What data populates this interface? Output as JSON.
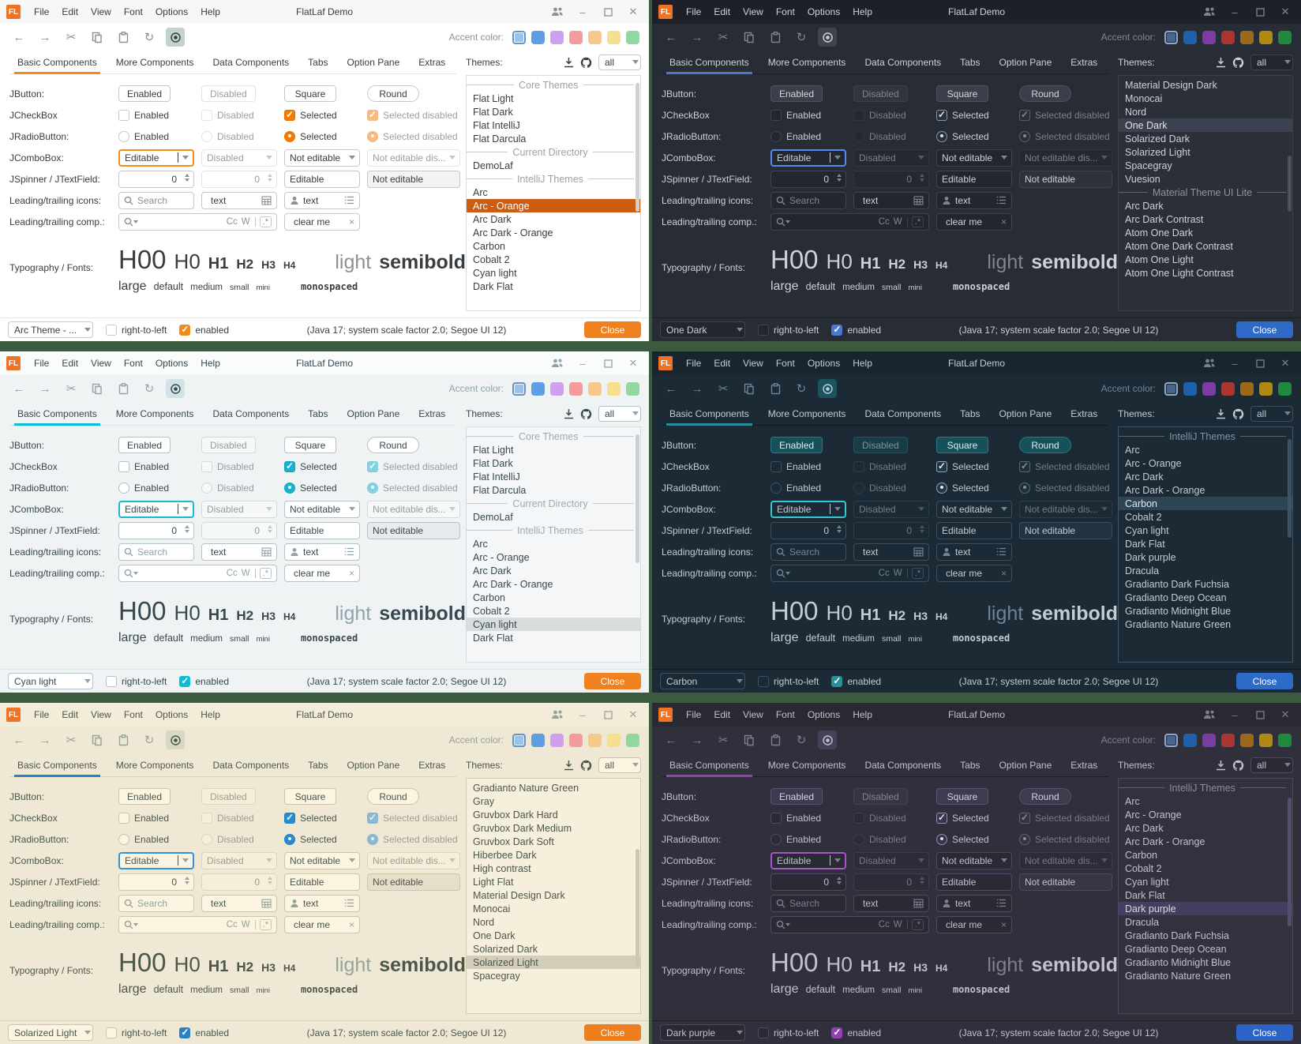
{
  "shared": {
    "titlebar": {
      "logo": "FL",
      "menus": [
        "File",
        "Edit",
        "View",
        "Font",
        "Options",
        "Help"
      ],
      "title": "FlatLaf Demo",
      "minimize": "–",
      "close": "✕"
    },
    "toolbar": {
      "accent_label": "Accent color:",
      "swatches": {
        "light": [
          "#9cc2e8",
          "#5c9fe6",
          "#cf9ff0",
          "#f59b9b",
          "#f6c98b",
          "#f6df8d",
          "#90d7a1"
        ],
        "dark": [
          "#4c648c",
          "#1d61ad",
          "#7c3da3",
          "#ad3531",
          "#9c691b",
          "#ae8a12",
          "#20893d"
        ]
      }
    },
    "tabs": [
      "Basic Components",
      "More Components",
      "Data Components",
      "Tabs",
      "Option Pane",
      "Extras"
    ],
    "themesPanel": {
      "label": "Themes:",
      "filter": "all"
    },
    "rows": {
      "labels": [
        "JButton:",
        "JCheckBox",
        "JRadioButton:",
        "JComboBox:",
        "JSpinner / JTextField:",
        "Leading/trailing icons:",
        "Leading/trailing comp.:",
        "Typography / Fonts:"
      ],
      "help": "?",
      "buttons": [
        "Enabled",
        "Disabled",
        "Square",
        "Round"
      ],
      "check": [
        "Enabled",
        "Disabled",
        "Selected",
        "Selected disabled"
      ],
      "radio": [
        "Enabled",
        "Disabled",
        "Selected",
        "Selected disabled"
      ],
      "combo": [
        "Editable",
        "Disabled",
        "Not editable",
        "Not editable dis..."
      ],
      "spinner": {
        "value1": "0",
        "value2": "0",
        "field1": "Editable",
        "field2": "Not editable"
      },
      "icons": {
        "search_placeholder": "Search",
        "text1": "text",
        "text2": "text"
      },
      "comp": {
        "cc": "Cc",
        "w": "W",
        "regex": ".*",
        "clear": "clear me",
        "x": "×"
      },
      "typo": {
        "h": [
          "H00",
          "H0",
          "H1",
          "H2",
          "H3",
          "H4"
        ],
        "light": "light",
        "semibold": "semibold",
        "sizes": [
          "large",
          "default",
          "medium",
          "small",
          "mini"
        ],
        "mono": "monospaced"
      }
    },
    "statusbar": {
      "rtl": "right-to-left",
      "enabled": "enabled",
      "info": "(Java 17;  system scale factor 2.0; Segoe UI 12)",
      "close": "Close"
    }
  },
  "windows": [
    {
      "name": "arc-orange",
      "statusTheme": "Arc Theme - ...",
      "swatchSet": "light",
      "palette": {
        "bg": "#ffffff",
        "titlebar": "#f7f7f7",
        "text": "#383d41",
        "muted": "#8b9096",
        "sep": "#e2e4e6",
        "field": "#ffffff",
        "fieldBorder": "#c5c9cc",
        "roBg": "#f2f3f4",
        "btn": "#ffffff",
        "btnBorder": "#c5c9cc",
        "btnText": "#383d41",
        "tabU": "#f08c1d",
        "selBg": "#cc5c12",
        "selText": "#ffffff",
        "closeBg": "#f0811f",
        "toggleBg": "#c2d2ce",
        "listBg": "#ffffff",
        "listBorder": "#d9dcde",
        "headerText": "#9ba1a7",
        "focus": "#f08c1a",
        "checkBg": "#f57b00",
        "checkBorder": "#e67000",
        "checkMark": "#ffffff",
        "thumb": "#cdd1d4",
        "help": "#5294e2",
        "swsel": "#6a93c0"
      },
      "themeList": {
        "thumbTop": 3,
        "thumbHeight": 55,
        "items": [
          {
            "type": "header",
            "label": "Core Themes"
          },
          {
            "type": "item",
            "label": "Flat Light"
          },
          {
            "type": "item",
            "label": "Flat Dark"
          },
          {
            "type": "item",
            "label": "Flat IntelliJ"
          },
          {
            "type": "item",
            "label": "Flat Darcula"
          },
          {
            "type": "header",
            "label": "Current Directory"
          },
          {
            "type": "item",
            "label": "DemoLaf"
          },
          {
            "type": "header",
            "label": "IntelliJ Themes"
          },
          {
            "type": "item",
            "label": "Arc"
          },
          {
            "type": "item",
            "label": "Arc - Orange",
            "selected": true
          },
          {
            "type": "item",
            "label": "Arc Dark"
          },
          {
            "type": "item",
            "label": "Arc Dark - Orange"
          },
          {
            "type": "item",
            "label": "Carbon"
          },
          {
            "type": "item",
            "label": "Cobalt 2"
          },
          {
            "type": "item",
            "label": "Cyan light"
          },
          {
            "type": "item",
            "label": "Dark Flat"
          }
        ]
      }
    },
    {
      "name": "one-dark",
      "statusTheme": "One Dark",
      "swatchSet": "dark",
      "palette": {
        "bg": "#282c34",
        "titlebar": "#1d2127",
        "text": "#ccd2da",
        "muted": "#7e8694",
        "sep": "#1b1e24",
        "field": "#22262e",
        "fieldBorder": "#3e4350",
        "roBg": "#2d323b",
        "btn": "#3a3f4a",
        "btnBorder": "#4c5260",
        "btnText": "#d2d7df",
        "tabU": "#4d78cc",
        "selBg": "#3b414e",
        "selText": "#dfe3e9",
        "closeBg": "#2e6ac8",
        "toggleBg": "#3e434e",
        "listBg": "#2b2f38",
        "listBorder": "#3b404b",
        "headerText": "#8b93a1",
        "focus": "#568af2",
        "checkBg": "#2b313c",
        "checkBorder": "#8a93a2",
        "checkMark": "#dde2e9",
        "thumb": "#4a505d",
        "help": "#9aa2b0",
        "swsel": "#93a7c8"
      },
      "themeList": {
        "thumbTop": 34,
        "thumbHeight": 24,
        "items": [
          {
            "type": "item",
            "label": "Material Design Dark"
          },
          {
            "type": "item",
            "label": "Monocai"
          },
          {
            "type": "item",
            "label": "Nord"
          },
          {
            "type": "item",
            "label": "One Dark",
            "selected": true
          },
          {
            "type": "item",
            "label": "Solarized Dark"
          },
          {
            "type": "item",
            "label": "Solarized Light"
          },
          {
            "type": "item",
            "label": "Spacegray"
          },
          {
            "type": "item",
            "label": "Vuesion"
          },
          {
            "type": "header",
            "label": "Material Theme UI Lite"
          },
          {
            "type": "item",
            "label": "Arc Dark"
          },
          {
            "type": "item",
            "label": "Arc Dark Contrast"
          },
          {
            "type": "item",
            "label": "Atom One Dark"
          },
          {
            "type": "item",
            "label": "Atom One Dark Contrast"
          },
          {
            "type": "item",
            "label": "Atom One Light"
          },
          {
            "type": "item",
            "label": "Atom One Light Contrast"
          }
        ]
      }
    },
    {
      "name": "cyan-light",
      "statusTheme": "Cyan light",
      "swatchSet": "light",
      "palette": {
        "bg": "#f0f3f4",
        "titlebar": "#fafcfc",
        "text": "#374850",
        "muted": "#8fa3ad",
        "sep": "#dde3e6",
        "field": "#ffffff",
        "fieldBorder": "#b4c2c9",
        "roBg": "#e7ebed",
        "btn": "#ffffff",
        "btnBorder": "#b4c2c9",
        "btnText": "#374850",
        "tabU": "#0cbcd5",
        "selBg": "#d8dcdd",
        "selText": "#374850",
        "closeBg": "#f0811f",
        "toggleBg": "#d2e3e7",
        "listBg": "#f4f6f7",
        "listBorder": "#d5dcdf",
        "headerText": "#9cabb2",
        "focus": "#16b8d3",
        "checkBg": "#14b4d1",
        "checkBorder": "#10a6c2",
        "checkMark": "#ffffff",
        "thumb": "#c6cfd3",
        "help": "#2196c9",
        "swsel": "#6a93c0"
      },
      "themeList": {
        "thumbTop": 3,
        "thumbHeight": 55,
        "items": [
          {
            "type": "header",
            "label": "Core Themes"
          },
          {
            "type": "item",
            "label": "Flat Light"
          },
          {
            "type": "item",
            "label": "Flat Dark"
          },
          {
            "type": "item",
            "label": "Flat IntelliJ"
          },
          {
            "type": "item",
            "label": "Flat Darcula"
          },
          {
            "type": "header",
            "label": "Current Directory"
          },
          {
            "type": "item",
            "label": "DemoLaf"
          },
          {
            "type": "header",
            "label": "IntelliJ Themes"
          },
          {
            "type": "item",
            "label": "Arc"
          },
          {
            "type": "item",
            "label": "Arc - Orange"
          },
          {
            "type": "item",
            "label": "Arc Dark"
          },
          {
            "type": "item",
            "label": "Arc Dark - Orange"
          },
          {
            "type": "item",
            "label": "Carbon"
          },
          {
            "type": "item",
            "label": "Cobalt 2"
          },
          {
            "type": "item",
            "label": "Cyan light",
            "selected": true
          },
          {
            "type": "item",
            "label": "Dark Flat"
          }
        ]
      }
    },
    {
      "name": "carbon",
      "statusTheme": "Carbon",
      "swatchSet": "dark",
      "palette": {
        "bg": "#1c2a35",
        "titlebar": "#18242e",
        "text": "#c1cdd5",
        "muted": "#6f8593",
        "sep": "#10191f",
        "field": "#1c2a35",
        "fieldBorder": "#3b4f5f",
        "roBg": "#223342",
        "btn": "#17505a",
        "btnBorder": "#2a7a84",
        "btnText": "#ddf1f0",
        "tabU": "#27909a",
        "selBg": "#2e4556",
        "selText": "#e0eaf0",
        "closeBg": "#2e6ac8",
        "toggleBg": "#1a545e",
        "listBg": "#1c2a35",
        "listBorder": "#3e5365",
        "headerText": "#7f95a2",
        "focus": "#36c9d5",
        "checkBg": "#223744",
        "checkBorder": "#8fa5b2",
        "checkMark": "#e9f1f5",
        "thumb": "#3b5468",
        "help": "#2dbac4",
        "swsel": "#93a7c8"
      },
      "themeList": {
        "thumbTop": 5,
        "thumbHeight": 42,
        "items": [
          {
            "type": "header",
            "label": "IntelliJ Themes"
          },
          {
            "type": "item",
            "label": "Arc"
          },
          {
            "type": "item",
            "label": "Arc - Orange"
          },
          {
            "type": "item",
            "label": "Arc Dark"
          },
          {
            "type": "item",
            "label": "Arc Dark - Orange"
          },
          {
            "type": "item",
            "label": "Carbon",
            "selected": true
          },
          {
            "type": "item",
            "label": "Cobalt 2"
          },
          {
            "type": "item",
            "label": "Cyan light"
          },
          {
            "type": "item",
            "label": "Dark Flat"
          },
          {
            "type": "item",
            "label": "Dark purple"
          },
          {
            "type": "item",
            "label": "Dracula"
          },
          {
            "type": "item",
            "label": "Gradianto Dark Fuchsia"
          },
          {
            "type": "item",
            "label": "Gradianto Deep Ocean"
          },
          {
            "type": "item",
            "label": "Gradianto Midnight Blue"
          },
          {
            "type": "item",
            "label": "Gradianto Nature Green"
          }
        ]
      }
    },
    {
      "name": "solarized-light",
      "statusTheme": "Solarized Light",
      "swatchSet": "light",
      "palette": {
        "bg": "#eee8d5",
        "titlebar": "#f2ecd9",
        "text": "#4c564b",
        "muted": "#96a39b",
        "sep": "#d9d3bd",
        "field": "#faf4e1",
        "fieldBorder": "#ccc5aa",
        "roBg": "#e4decb",
        "btn": "#faf4e1",
        "btnBorder": "#ccc5aa",
        "btnText": "#4c564b",
        "tabU": "#2b80c2",
        "selBg": "#d3cdba",
        "selText": "#4c564b",
        "closeBg": "#ee7d1e",
        "toggleBg": "#d7d9c3",
        "listBg": "#f5efdc",
        "listBorder": "#d2cbb2",
        "headerText": "#9da99f",
        "focus": "#2f93d8",
        "checkBg": "#268bd2",
        "checkBorder": "#1f7fc4",
        "checkMark": "#fdf6e3",
        "thumb": "#cec7ac",
        "help": "#268bd2",
        "swsel": "#6a93c0"
      },
      "themeList": {
        "thumbTop": 30,
        "thumbHeight": 50,
        "items": [
          {
            "type": "item",
            "label": "Gradianto Nature Green"
          },
          {
            "type": "item",
            "label": "Gray"
          },
          {
            "type": "item",
            "label": "Gruvbox Dark Hard"
          },
          {
            "type": "item",
            "label": "Gruvbox Dark Medium"
          },
          {
            "type": "item",
            "label": "Gruvbox Dark Soft"
          },
          {
            "type": "item",
            "label": "Hiberbee Dark"
          },
          {
            "type": "item",
            "label": "High contrast"
          },
          {
            "type": "item",
            "label": "Light Flat"
          },
          {
            "type": "item",
            "label": "Material Design Dark"
          },
          {
            "type": "item",
            "label": "Monocai"
          },
          {
            "type": "item",
            "label": "Nord"
          },
          {
            "type": "item",
            "label": "One Dark"
          },
          {
            "type": "item",
            "label": "Solarized Dark"
          },
          {
            "type": "item",
            "label": "Solarized Light",
            "selected": true
          },
          {
            "type": "item",
            "label": "Spacegray"
          }
        ]
      }
    },
    {
      "name": "dark-purple",
      "statusTheme": "Dark purple",
      "swatchSet": "dark",
      "palette": {
        "bg": "#30303c",
        "titlebar": "#292932",
        "text": "#c2bfce",
        "muted": "#817d93",
        "sep": "#1e1e26",
        "field": "#2a2a35",
        "fieldBorder": "#4d4964",
        "roBg": "#373744",
        "btn": "#3e3b4e",
        "btnBorder": "#575271",
        "btnText": "#d5d2e0",
        "tabU": "#9140ae",
        "selBg": "#443e5f",
        "selText": "#dad7e5",
        "closeBg": "#2e63c6",
        "toggleBg": "#454159",
        "listBg": "#32323e",
        "listBorder": "#4b4662",
        "headerText": "#8d88a0",
        "focus": "#a955c9",
        "checkBg": "#39344b",
        "checkBorder": "#958eac",
        "checkMark": "#e2dfec",
        "thumb": "#544f6e",
        "help": "#9d93b8",
        "swsel": "#93a7c8"
      },
      "themeList": {
        "thumbTop": 8,
        "thumbHeight": 55,
        "items": [
          {
            "type": "header",
            "label": "IntelliJ Themes"
          },
          {
            "type": "item",
            "label": "Arc"
          },
          {
            "type": "item",
            "label": "Arc - Orange"
          },
          {
            "type": "item",
            "label": "Arc Dark"
          },
          {
            "type": "item",
            "label": "Arc Dark - Orange"
          },
          {
            "type": "item",
            "label": "Carbon"
          },
          {
            "type": "item",
            "label": "Cobalt 2"
          },
          {
            "type": "item",
            "label": "Cyan light"
          },
          {
            "type": "item",
            "label": "Dark Flat"
          },
          {
            "type": "item",
            "label": "Dark purple",
            "selected": true
          },
          {
            "type": "item",
            "label": "Dracula"
          },
          {
            "type": "item",
            "label": "Gradianto Dark Fuchsia"
          },
          {
            "type": "item",
            "label": "Gradianto Deep Ocean"
          },
          {
            "type": "item",
            "label": "Gradianto Midnight Blue"
          },
          {
            "type": "item",
            "label": "Gradianto Nature Green"
          }
        ]
      }
    }
  ]
}
